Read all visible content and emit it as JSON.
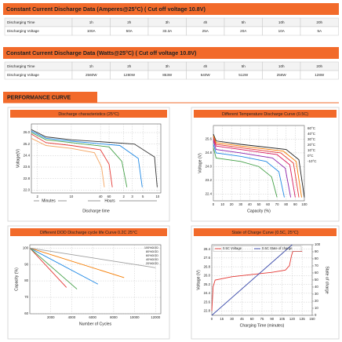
{
  "sections": [
    {
      "title": "Constant Current Discharge Data (Amperes@25°C) ( Cut off voltage 10.8V)",
      "rows": [
        [
          "Discharging Time",
          "1h",
          "2h",
          "3h",
          "4h",
          "5h",
          "10h",
          "20h"
        ],
        [
          "Discharging Voltage",
          "100A",
          "50A",
          "33.3A",
          "25A",
          "20A",
          "10A",
          "5A"
        ]
      ]
    },
    {
      "title": "Constant Current Discharge Data (Watts@25°C) ( Cut off voltage 10.8V)",
      "rows": [
        [
          "Discharging Time",
          "1h",
          "2h",
          "3h",
          "4h",
          "5h",
          "10h",
          "20h"
        ],
        [
          "Discharging Voltage",
          "2560W",
          "1280W",
          "853W",
          "640W",
          "512W",
          "256W",
          "128W"
        ]
      ]
    }
  ],
  "performance_title": "PERFORMANCE CURVE",
  "chart_data": [
    {
      "type": "line",
      "title": "Discharge characteristics (25°C)",
      "xlabel": "Discharge time",
      "ylabel": "Voltage(V)",
      "annotations": [
        "Minutes",
        "Hours"
      ],
      "xscale": "log",
      "grid": true,
      "xlim": [
        1.5,
        700
      ],
      "xticks": [
        2,
        10,
        40,
        60,
        {
          "value": 120,
          "label": "2"
        },
        {
          "value": 180,
          "label": "3"
        },
        {
          "value": 300,
          "label": "5"
        },
        {
          "value": 600,
          "label": "10"
        }
      ],
      "ylim": [
        21.8,
        26.6
      ],
      "yticks": [
        {
          "value": 22,
          "label": "22.0"
        },
        22.8,
        23.6,
        24.4,
        25.2,
        {
          "value": 26,
          "label": "26.0"
        }
      ],
      "series": [
        {
          "color": "#f4a460",
          "x": [
            1.5,
            3,
            10,
            30,
            42,
            48
          ],
          "values": [
            25.6,
            25.1,
            24.9,
            24.6,
            23.6,
            22.2
          ]
        },
        {
          "color": "#e53935",
          "x": [
            1.5,
            3,
            10,
            40,
            60,
            70
          ],
          "values": [
            25.9,
            25.3,
            25.1,
            24.8,
            23.8,
            22.2
          ]
        },
        {
          "color": "#43a047",
          "x": [
            1.5,
            3,
            10,
            60,
            110,
            140
          ],
          "values": [
            26.0,
            25.5,
            25.3,
            25.0,
            24.0,
            22.2
          ]
        },
        {
          "color": "#1e88e5",
          "x": [
            1.5,
            3,
            10,
            100,
            240,
            290
          ],
          "values": [
            26.1,
            25.6,
            25.4,
            25.1,
            24.2,
            22.2
          ]
        },
        {
          "color": "#333333",
          "x": [
            1.5,
            3,
            10,
            200,
            520,
            590
          ],
          "values": [
            26.2,
            25.7,
            25.5,
            25.2,
            24.3,
            22.2
          ]
        }
      ]
    },
    {
      "type": "line",
      "title": "Different Temperature Discharge Curve (0.5C)",
      "xlabel": "Capacity (%)",
      "ylabel": "Voltage (V)",
      "legend": "right",
      "grid": true,
      "xlim": [
        0,
        100
      ],
      "xticks": [
        0,
        10,
        20,
        30,
        40,
        50,
        60,
        70,
        80,
        90,
        100
      ],
      "ylim": [
        22,
        26.4
      ],
      "yticks": [
        22.4,
        23.2,
        {
          "value": 24,
          "label": "24.0"
        },
        24.8,
        25.6
      ],
      "series": [
        {
          "name": "60°C",
          "color": "#222222",
          "x": [
            0,
            3,
            30,
            80,
            94,
            100
          ],
          "values": [
            25.9,
            25.5,
            25.3,
            25.0,
            24.4,
            22.2
          ]
        },
        {
          "name": "40°C",
          "color": "#f57c00",
          "x": [
            0,
            3,
            30,
            77,
            91,
            97
          ],
          "values": [
            25.8,
            25.4,
            25.2,
            24.9,
            24.3,
            22.2
          ]
        },
        {
          "name": "30°C",
          "color": "#e53935",
          "x": [
            0,
            3,
            30,
            74,
            88,
            94
          ],
          "values": [
            25.7,
            25.3,
            25.1,
            24.8,
            24.2,
            22.2
          ]
        },
        {
          "name": "20°C",
          "color": "#d81b60",
          "x": [
            0,
            3,
            30,
            70,
            84,
            90
          ],
          "values": [
            25.6,
            25.2,
            25.0,
            24.7,
            24.1,
            22.2
          ]
        },
        {
          "name": "10°C",
          "color": "#8e24aa",
          "x": [
            0,
            3,
            30,
            65,
            79,
            85
          ],
          "values": [
            25.5,
            25.0,
            24.8,
            24.5,
            23.9,
            22.2
          ]
        },
        {
          "name": "0°C",
          "color": "#1e88e5",
          "x": [
            0,
            3,
            30,
            58,
            72,
            78
          ],
          "values": [
            25.3,
            24.8,
            24.6,
            24.3,
            23.7,
            22.2
          ]
        },
        {
          "name": "-10°C",
          "color": "#43a047",
          "x": [
            0,
            3,
            30,
            50,
            64,
            70
          ],
          "values": [
            25.1,
            24.5,
            24.3,
            24.0,
            23.4,
            22.2
          ]
        }
      ]
    },
    {
      "type": "line",
      "title": "Different DOD Discharge cycle life Curve 0.2C 25°C",
      "xlabel": "Number of Cycles",
      "ylabel": "Capacity (%)",
      "legend": "upper right",
      "grid": true,
      "xlim": [
        0,
        12500
      ],
      "xticks": [
        2000,
        4000,
        6000,
        8000,
        10000,
        12000
      ],
      "ylim": [
        60,
        102
      ],
      "yticks": [
        60,
        70,
        80,
        90,
        100
      ],
      "series": [
        {
          "name": "100%DOD",
          "color": "#e53935",
          "x": [
            0,
            3500
          ],
          "values": [
            100,
            76
          ]
        },
        {
          "name": "80%DOD",
          "color": "#43a047",
          "x": [
            0,
            4500
          ],
          "values": [
            100,
            75
          ]
        },
        {
          "name": "60%DOD",
          "color": "#1e88e5",
          "x": [
            0,
            6500
          ],
          "values": [
            100,
            78
          ]
        },
        {
          "name": "40%DOD",
          "color": "#f57c00",
          "x": [
            0,
            9000
          ],
          "values": [
            100,
            82
          ]
        },
        {
          "name": "20%DOD",
          "color": "#9e9e9e",
          "x": [
            0,
            12000
          ],
          "values": [
            100,
            88
          ]
        }
      ]
    },
    {
      "type": "line",
      "title": "State of Charge Curve (0.5C, 25°C)",
      "xlabel": "Charging Time (minutes)",
      "ylabel": "Voltage (V)",
      "y2label": "State of charge",
      "legend": "upper left",
      "grid": true,
      "xlim": [
        0,
        150
      ],
      "xticks": [
        0,
        15,
        30,
        45,
        60,
        75,
        90,
        105,
        120,
        135,
        150
      ],
      "ylim": [
        22.4,
        28.8
      ],
      "yticks": [
        22.8,
        23.6,
        24.4,
        25.2,
        {
          "value": 26,
          "label": "26.0"
        },
        26.8,
        27.6,
        28.4
      ],
      "y2lim": [
        0,
        100
      ],
      "y2ticks": [
        0,
        10,
        20,
        30,
        40,
        50,
        60,
        70,
        80,
        90,
        100
      ],
      "series": [
        {
          "name": "0.5C Voltage",
          "color": "#e53935",
          "x": [
            0,
            2,
            5,
            30,
            60,
            90,
            110,
            116,
            119,
            121,
            135
          ],
          "values": [
            22.8,
            25.0,
            25.6,
            25.9,
            26.1,
            26.3,
            26.5,
            26.9,
            27.8,
            28.2,
            28.2
          ]
        },
        {
          "name": "0.5C State of charge",
          "color": "#3949ab",
          "axis": "y2",
          "x": [
            0,
            120
          ],
          "values": [
            0,
            100
          ]
        }
      ]
    }
  ]
}
